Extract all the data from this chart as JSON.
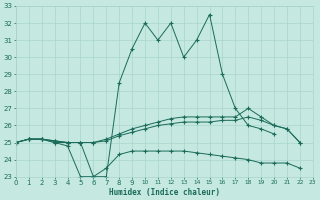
{
  "xlabel": "Humidex (Indice chaleur)",
  "bg_color": "#c5e8e0",
  "grid_color": "#a8d4cc",
  "line_color": "#1a6b5a",
  "ylim": [
    23,
    33
  ],
  "xlim": [
    0,
    23
  ],
  "yticks": [
    23,
    24,
    25,
    26,
    27,
    28,
    29,
    30,
    31,
    32,
    33
  ],
  "xticks": [
    0,
    1,
    2,
    3,
    4,
    5,
    6,
    7,
    8,
    9,
    10,
    11,
    12,
    13,
    14,
    15,
    16,
    17,
    18,
    19,
    20,
    21,
    22,
    23
  ],
  "line_max": [
    25.0,
    25.2,
    25.2,
    25.0,
    25.0,
    25.0,
    23.0,
    23.0,
    28.5,
    30.5,
    32.0,
    31.0,
    32.0,
    30.0,
    31.0,
    32.5,
    29.0,
    27.0,
    26.0,
    25.8,
    25.5,
    null,
    null,
    null
  ],
  "line_p75": [
    25.0,
    25.2,
    25.2,
    25.1,
    25.0,
    25.0,
    25.0,
    25.2,
    25.5,
    25.8,
    26.0,
    26.2,
    26.4,
    26.5,
    26.5,
    26.5,
    26.5,
    26.5,
    27.0,
    26.5,
    26.0,
    25.8,
    25.0,
    null
  ],
  "line_mean": [
    25.0,
    25.2,
    25.2,
    25.1,
    25.0,
    25.0,
    25.0,
    25.1,
    25.4,
    25.6,
    25.8,
    26.0,
    26.1,
    26.2,
    26.2,
    26.2,
    26.3,
    26.3,
    26.5,
    26.3,
    26.0,
    25.8,
    25.0,
    null
  ],
  "line_min": [
    25.0,
    25.2,
    25.2,
    25.0,
    24.8,
    23.0,
    23.0,
    23.5,
    24.3,
    24.5,
    24.5,
    24.5,
    24.5,
    24.5,
    24.4,
    24.3,
    24.2,
    24.1,
    24.0,
    23.8,
    23.8,
    23.8,
    23.5,
    null
  ]
}
